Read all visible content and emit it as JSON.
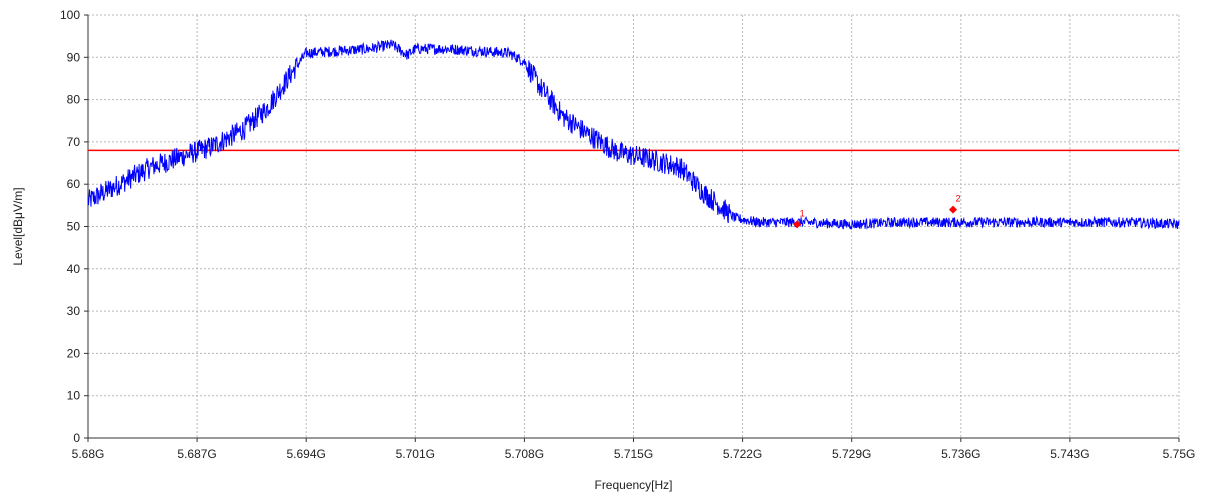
{
  "chart_data": {
    "type": "line",
    "title": "",
    "xlabel": "Frequency[Hz]",
    "ylabel": "Level[dBμV/m]",
    "xlim": [
      5.68,
      5.75
    ],
    "ylim": [
      0,
      100
    ],
    "grid": true,
    "x_ticks": [
      5.68,
      5.687,
      5.694,
      5.701,
      5.708,
      5.715,
      5.722,
      5.729,
      5.736,
      5.743,
      5.75
    ],
    "x_tick_labels": [
      "5.68G",
      "5.687G",
      "5.694G",
      "5.701G",
      "5.708G",
      "5.715G",
      "5.722G",
      "5.729G",
      "5.736G",
      "5.743G",
      "5.75G"
    ],
    "y_ticks": [
      0,
      10,
      20,
      30,
      40,
      50,
      60,
      70,
      80,
      90,
      100
    ],
    "y_tick_labels": [
      "0",
      "10",
      "20",
      "30",
      "40",
      "50",
      "60",
      "70",
      "80",
      "90",
      "100"
    ],
    "series": [
      {
        "color": "#0000ff",
        "x": [
          5.68,
          5.682,
          5.684,
          5.686,
          5.688,
          5.69,
          5.6915,
          5.693,
          5.694,
          5.696,
          5.698,
          5.6995,
          5.7005,
          5.701,
          5.703,
          5.705,
          5.707,
          5.708,
          5.709,
          5.7105,
          5.712,
          5.714,
          5.716,
          5.718,
          5.7195,
          5.7215,
          5.723,
          5.726,
          5.729,
          5.732,
          5.735,
          5.738,
          5.741,
          5.744,
          5.747,
          5.75
        ],
        "y": [
          56,
          60,
          64,
          66.5,
          69,
          73,
          78,
          86,
          91,
          91.5,
          92,
          93,
          90.5,
          92,
          92,
          91.5,
          91,
          89,
          83,
          76,
          72,
          67.5,
          66,
          64,
          58,
          52,
          51,
          51,
          50.5,
          51,
          51,
          51,
          51,
          51,
          51,
          50.5
        ]
      }
    ],
    "limit_line": {
      "y": 68,
      "color": "#ff0000"
    },
    "markers": [
      {
        "label": "1",
        "x": 5.7255,
        "y": 50.5,
        "color": "#ff0000"
      },
      {
        "label": "2",
        "x": 5.7355,
        "y": 54,
        "color": "#ff0000"
      }
    ]
  }
}
